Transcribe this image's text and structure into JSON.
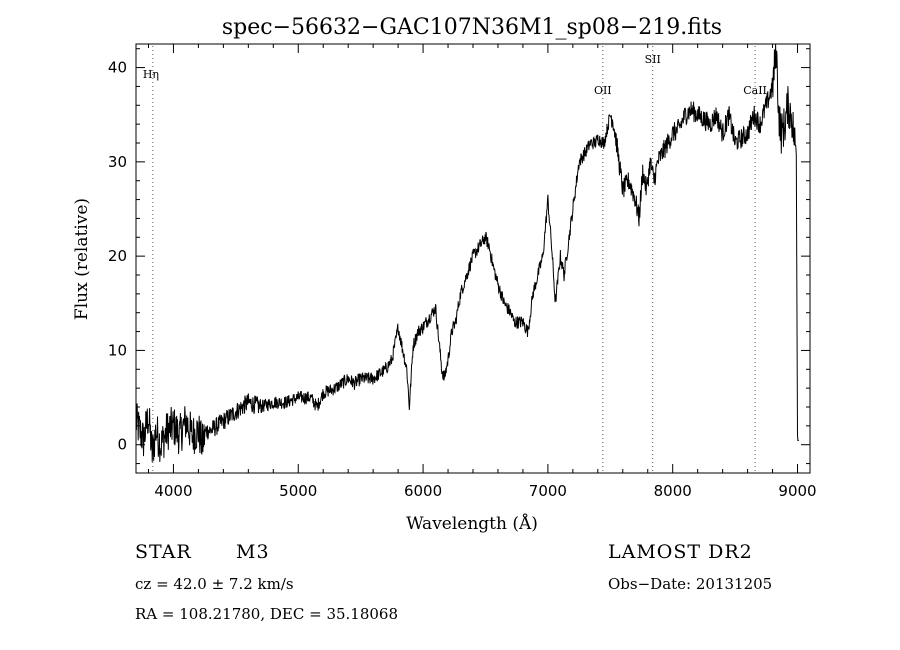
{
  "chart_data": {
    "type": "line",
    "title": "spec−56632−GAC107N36M1_sp08−219.fits",
    "xlabel": "Wavelength (Å)",
    "ylabel": "Flux (relative)",
    "xlim": [
      3700,
      9100
    ],
    "ylim": [
      -3,
      42.5
    ],
    "x_ticks": [
      4000,
      5000,
      6000,
      7000,
      8000,
      9000
    ],
    "y_ticks": [
      0,
      10,
      20,
      30,
      40
    ],
    "grid": false,
    "lines": [
      {
        "label": "Hη",
        "x": 3835
      },
      {
        "label": "OII",
        "x": 7440
      },
      {
        "label": "SII",
        "x": 7840
      },
      {
        "label": "CaII",
        "x": 8660
      }
    ],
    "series": [
      {
        "name": "flux",
        "x": [
          3700,
          3760,
          3800,
          3830,
          3860,
          3900,
          3950,
          4000,
          4050,
          4100,
          4150,
          4200,
          4230,
          4260,
          4300,
          4400,
          4500,
          4600,
          4700,
          4800,
          4900,
          5000,
          5100,
          5150,
          5200,
          5300,
          5400,
          5450,
          5500,
          5600,
          5700,
          5750,
          5780,
          5800,
          5830,
          5870,
          5890,
          5920,
          5960,
          6000,
          6050,
          6100,
          6150,
          6170,
          6200,
          6230,
          6260,
          6300,
          6350,
          6400,
          6450,
          6500,
          6530,
          6560,
          6600,
          6650,
          6700,
          6730,
          6760,
          6800,
          6840,
          6880,
          6920,
          6960,
          7000,
          7030,
          7060,
          7100,
          7130,
          7160,
          7200,
          7250,
          7300,
          7340,
          7380,
          7400,
          7450,
          7500,
          7520,
          7550,
          7580,
          7600,
          7650,
          7700,
          7730,
          7760,
          7790,
          7820,
          7850,
          7880,
          7920,
          7960,
          8000,
          8050,
          8100,
          8150,
          8200,
          8250,
          8300,
          8350,
          8400,
          8450,
          8500,
          8550,
          8600,
          8650,
          8700,
          8750,
          8800,
          8830,
          8850,
          8870,
          8900,
          8920,
          8950,
          8970,
          8990,
          9000,
          9010
        ],
        "y": [
          2.5,
          0.5,
          3.0,
          -1.0,
          1.5,
          0.0,
          1.5,
          2.0,
          1.0,
          2.5,
          1.0,
          1.5,
          0.0,
          1.5,
          1.5,
          2.5,
          3.5,
          4.5,
          4.0,
          4.5,
          4.5,
          5.0,
          5.0,
          4.0,
          5.5,
          6.0,
          7.0,
          6.5,
          7.0,
          7.0,
          8.0,
          9.0,
          11.0,
          12.5,
          10.5,
          8.0,
          4.0,
          10.5,
          12.0,
          12.5,
          13.5,
          14.5,
          8.0,
          7.0,
          9.0,
          12.0,
          13.0,
          16.0,
          18.0,
          20.0,
          21.0,
          22.0,
          21.0,
          19.0,
          17.0,
          15.0,
          14.0,
          13.0,
          13.0,
          13.0,
          12.0,
          16.0,
          18.0,
          20.0,
          26.0,
          21.0,
          15.0,
          20.0,
          18.0,
          21.0,
          25.0,
          30.0,
          31.0,
          32.0,
          32.0,
          32.5,
          32.0,
          35.0,
          34.5,
          32.0,
          29.0,
          27.0,
          28.0,
          26.0,
          24.0,
          29.0,
          27.0,
          30.0,
          28.0,
          30.0,
          31.0,
          32.0,
          33.0,
          33.5,
          35.0,
          35.5,
          35.0,
          34.5,
          34.0,
          35.0,
          33.0,
          35.0,
          32.0,
          32.5,
          33.0,
          35.0,
          34.0,
          36.0,
          38.0,
          42.0,
          35.0,
          33.0,
          34.0,
          36.0,
          35.0,
          33.0,
          31.0,
          1.0,
          0.5
        ]
      }
    ]
  },
  "footer": {
    "class_label": "STAR",
    "subclass_label": "M3",
    "survey_label": "LAMOST DR2",
    "cz_text": "cz = 42.0 ± 7.2 km/s",
    "obs_date_text": "Obs−Date: 20131205",
    "coords_text": "RA = 108.21780, DEC =  35.18068"
  }
}
